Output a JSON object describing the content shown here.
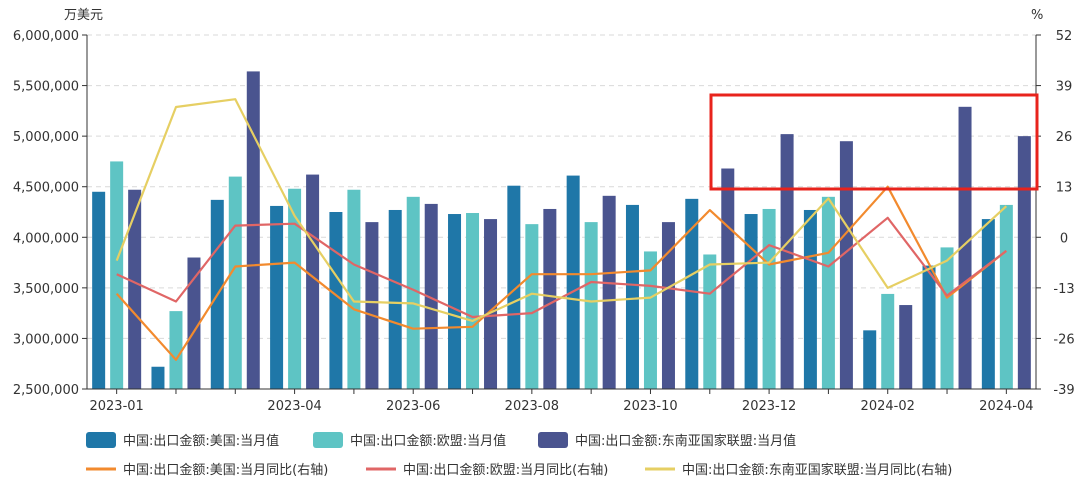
{
  "chart_data": {
    "type": "bar",
    "left_unit": "万美元",
    "right_unit": "%",
    "y_left": {
      "min": 2500000,
      "max": 6000000,
      "ticks": [
        2500000,
        3000000,
        3500000,
        4000000,
        4500000,
        5000000,
        5500000,
        6000000
      ],
      "tick_labels": [
        "2,500,000",
        "3,000,000",
        "3,500,000",
        "4,000,000",
        "4,500,000",
        "5,000,000",
        "5,500,000",
        "6,000,000"
      ]
    },
    "y_right": {
      "min": -39,
      "max": 52,
      "ticks": [
        -39,
        -26,
        -13,
        0,
        13,
        26,
        39,
        52
      ],
      "tick_labels": [
        "-39",
        "-26",
        "-13",
        "0",
        "13",
        "26",
        "39",
        "52"
      ]
    },
    "categories": [
      "2023-01",
      "2023-02",
      "2023-03",
      "2023-04",
      "2023-05",
      "2023-06",
      "2023-07",
      "2023-08",
      "2023-09",
      "2023-10",
      "2023-11",
      "2023-12",
      "2024-01",
      "2024-02",
      "2024-03",
      "2024-04"
    ],
    "x_tick_labels": [
      "2023-01",
      "",
      "",
      "2023-04",
      "",
      "2023-06",
      "",
      "2023-08",
      "",
      "2023-10",
      "",
      "2023-12",
      "",
      "2024-02",
      "",
      "2024-04"
    ],
    "bar_series": [
      {
        "name": "中国:出口金额:美国:当月值",
        "color": "#1f77a8",
        "values": [
          4450000,
          2720000,
          4370000,
          4310000,
          4250000,
          4270000,
          4230000,
          4510000,
          4610000,
          4320000,
          4380000,
          4230000,
          4270000,
          3080000,
          3720000,
          4180000
        ]
      },
      {
        "name": "中国:出口金额:欧盟:当月值",
        "color": "#5ec4c4",
        "values": [
          4750000,
          3270000,
          4600000,
          4480000,
          4470000,
          4400000,
          4240000,
          4130000,
          4150000,
          3860000,
          3830000,
          4280000,
          4400000,
          3440000,
          3900000,
          4320000
        ]
      },
      {
        "name": "中国:出口金额:东南亚国家联盟:当月值",
        "color": "#4a548f",
        "values": [
          4470000,
          3800000,
          5640000,
          4620000,
          4150000,
          4330000,
          4180000,
          4280000,
          4410000,
          4150000,
          4680000,
          5020000,
          4950000,
          3330000,
          5290000,
          5000000
        ]
      }
    ],
    "line_series": [
      {
        "name": "中国:出口金额:美国:当月同比(右轴)",
        "color": "#f28a2e",
        "values": [
          -14.5,
          -31.5,
          -7.5,
          -6.5,
          -18.5,
          -23.5,
          -23,
          -9.5,
          -9.5,
          -8.5,
          7,
          -7,
          -4,
          13,
          -15.5,
          -3.5
        ]
      },
      {
        "name": "中国:出口金额:欧盟:当月同比(右轴)",
        "color": "#e06666",
        "values": [
          -9.5,
          -16.5,
          3,
          3.5,
          -7,
          -13.5,
          -20.5,
          -19.5,
          -11.5,
          -12.5,
          -14.5,
          -2,
          -7.5,
          5,
          -15,
          -3.5
        ]
      },
      {
        "name": "中国:出口金额:东南亚国家联盟:当月同比(右轴)",
        "color": "#e6cf63",
        "values": [
          -6,
          33.5,
          35.5,
          5.5,
          -16.5,
          -17,
          -21.5,
          -14.5,
          -16.5,
          -15.5,
          -7,
          -6.5,
          10,
          -13,
          -6,
          8
        ]
      }
    ],
    "annotation": {
      "type": "red-rectangle",
      "color": "#e8231c"
    },
    "grid": true,
    "legend_position": "bottom"
  }
}
